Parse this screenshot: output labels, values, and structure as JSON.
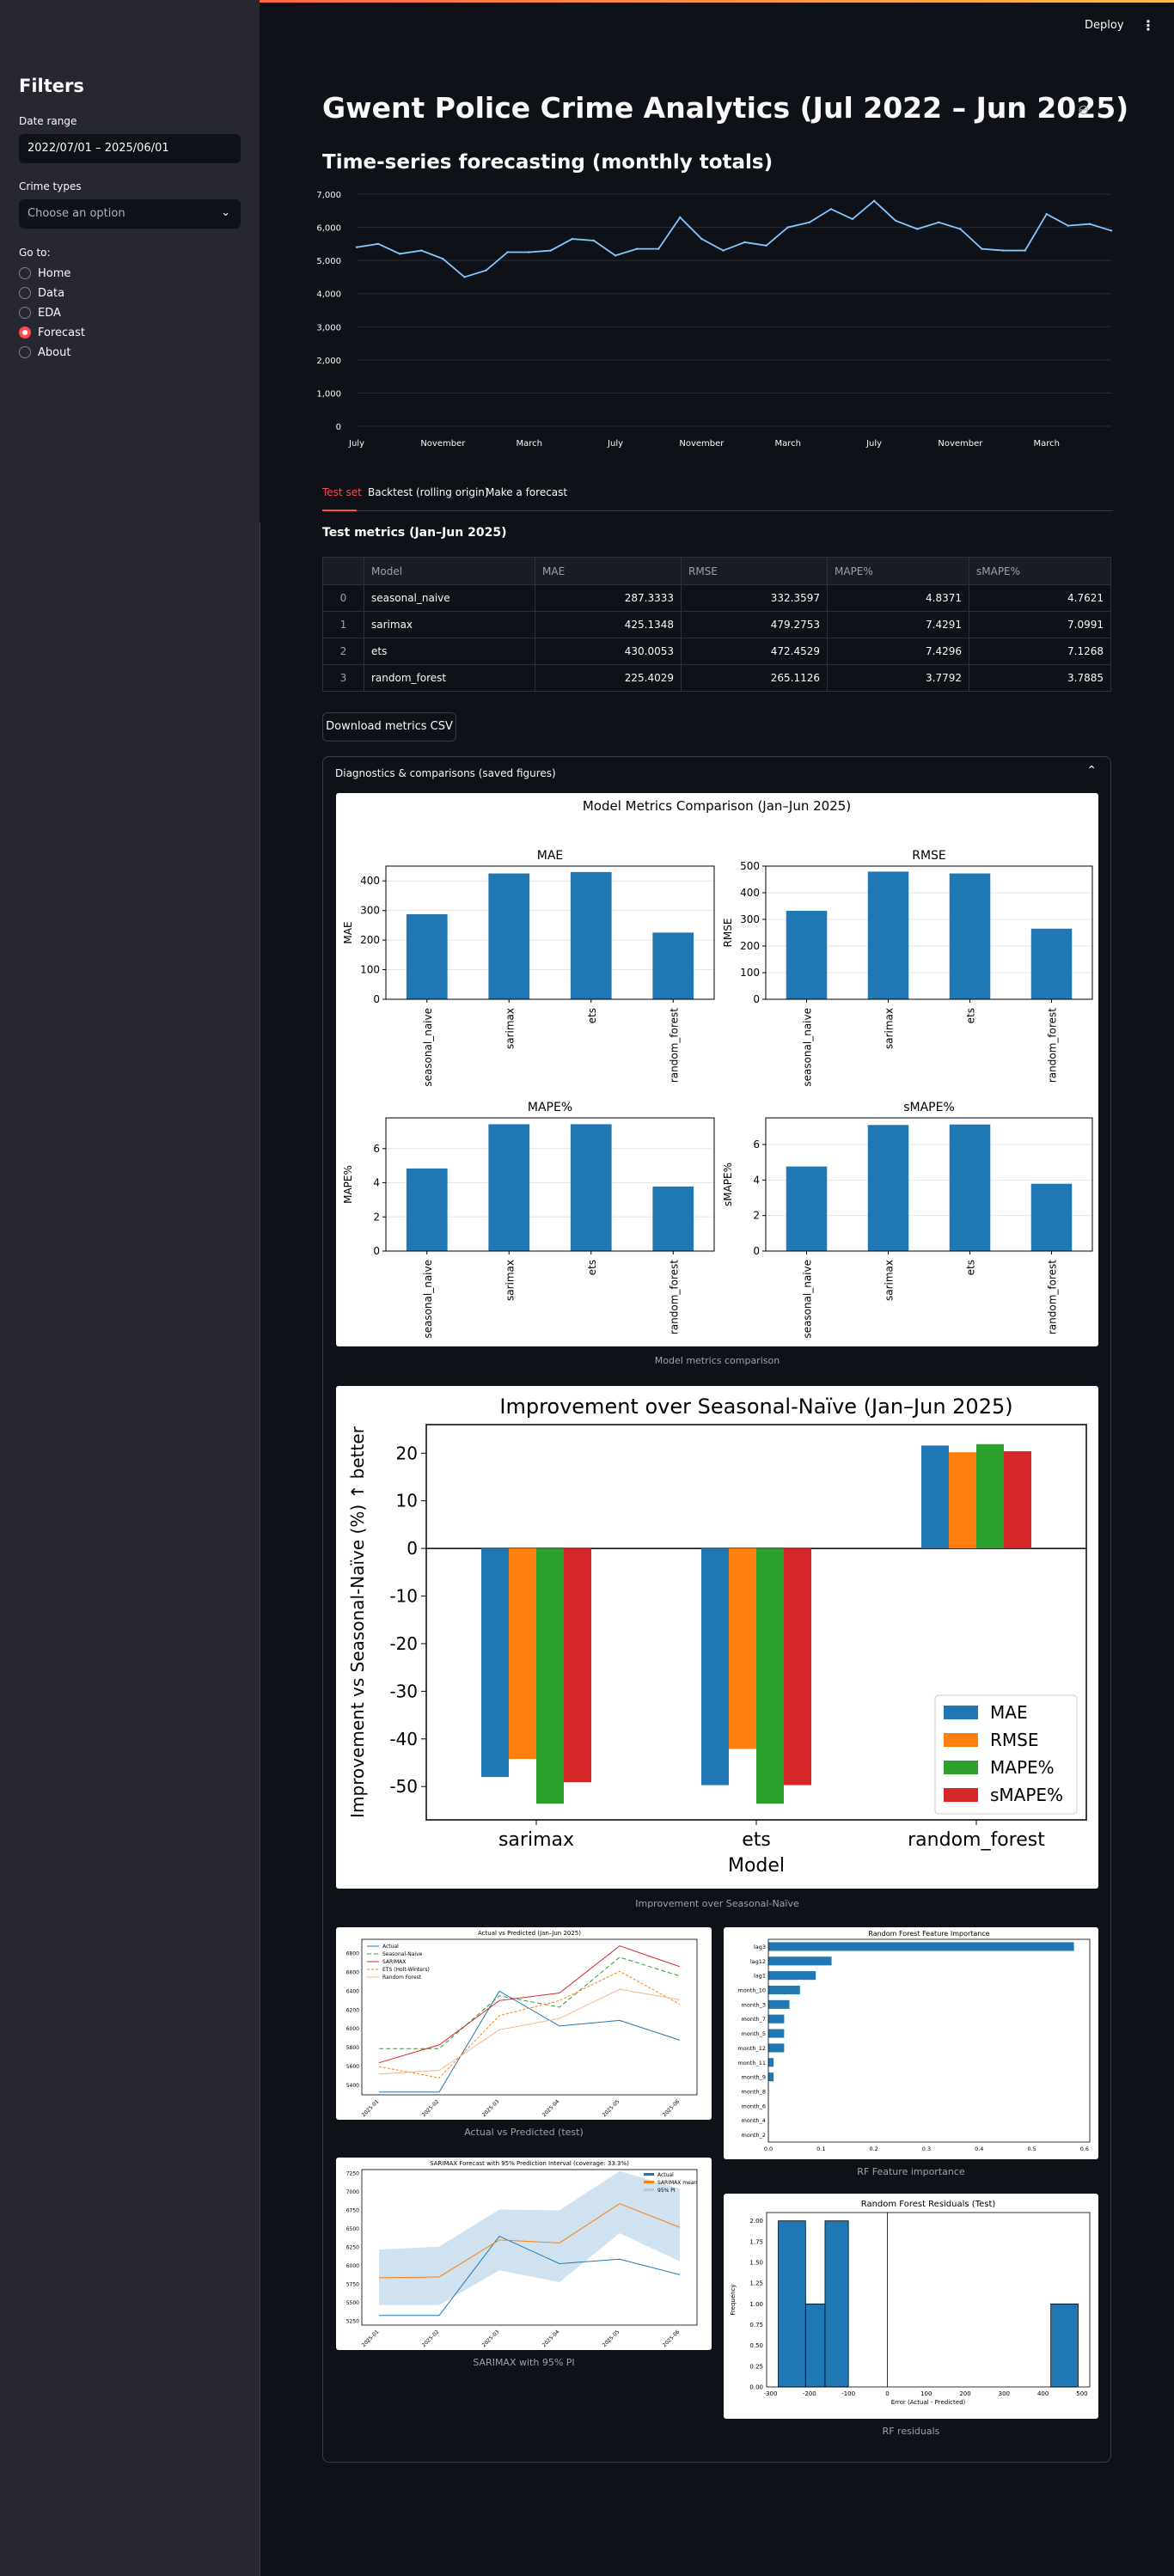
{
  "header": {
    "deploy": "Deploy",
    "menu": "⋮"
  },
  "sidebar": {
    "title": "Filters",
    "date_range_label": "Date range",
    "date_range_value": "2022/07/01 – 2025/06/01",
    "crime_types_label": "Crime types",
    "crime_types_placeholder": "Choose an option",
    "goto_label": "Go to:",
    "nav": [
      {
        "label": "Home",
        "selected": false
      },
      {
        "label": "Data",
        "selected": false
      },
      {
        "label": "EDA",
        "selected": false
      },
      {
        "label": "Forecast",
        "selected": true
      },
      {
        "label": "About",
        "selected": false
      }
    ]
  },
  "main": {
    "title": "Gwent Police Crime Analytics (Jul 2022 – Jun 2025)",
    "section": "Time-series forecasting (monthly totals)",
    "tabs": [
      "Test set",
      "Backtest (rolling origin)",
      "Make a forecast"
    ],
    "metrics_title": "Test metrics (Jan–Jun 2025)",
    "table": {
      "headers": [
        "",
        "Model",
        "MAE",
        "RMSE",
        "MAPE%",
        "sMAPE%"
      ],
      "rows": [
        [
          "0",
          "seasonal_naive",
          "287.3333",
          "332.3597",
          "4.8371",
          "4.7621"
        ],
        [
          "1",
          "sarimax",
          "425.1348",
          "479.2753",
          "7.4291",
          "7.0991"
        ],
        [
          "2",
          "ets",
          "430.0053",
          "472.4529",
          "7.4296",
          "7.1268"
        ],
        [
          "3",
          "random_forest",
          "225.4029",
          "265.1126",
          "3.7792",
          "3.7885"
        ]
      ]
    },
    "download": "Download metrics CSV",
    "expander_title": "Diagnostics & comparisons (saved figures)",
    "captions": {
      "metrics": "Model metrics comparison",
      "improvement": "Improvement over Seasonal-Naïve",
      "avp": "Actual vs Predicted (test)",
      "rf_imp": "RF Feature importance",
      "sarimax": "SARIMAX with 95% PI",
      "rf_res": "RF residuals"
    }
  },
  "chart_data": [
    {
      "type": "line",
      "x": [
        "2022-07",
        "2022-08",
        "2022-09",
        "2022-10",
        "2022-11",
        "2022-12",
        "2023-01",
        "2023-02",
        "2023-03",
        "2023-04",
        "2023-05",
        "2023-06",
        "2023-07",
        "2023-08",
        "2023-09",
        "2023-10",
        "2023-11",
        "2023-12",
        "2024-01",
        "2024-02",
        "2024-03",
        "2024-04",
        "2024-05",
        "2024-06",
        "2024-07",
        "2024-08",
        "2024-09",
        "2024-10",
        "2024-11",
        "2024-12",
        "2025-01",
        "2025-02",
        "2025-03",
        "2025-04",
        "2025-05",
        "2025-06"
      ],
      "values": [
        5400,
        5500,
        5200,
        5300,
        5050,
        4500,
        4700,
        5250,
        5250,
        5300,
        5650,
        5600,
        5150,
        5350,
        5350,
        6300,
        5650,
        5300,
        5550,
        5450,
        6000,
        6150,
        6550,
        6250,
        6800,
        6200,
        5950,
        6150,
        5950,
        5350,
        5300,
        5300,
        6400,
        6050,
        6100,
        5900
      ],
      "tick_labels": [
        "July",
        "November",
        "March",
        "July",
        "November",
        "March",
        "July",
        "November",
        "March"
      ],
      "y_ticks": [
        "0",
        "1,000",
        "2,000",
        "3,000",
        "4,000",
        "5,000",
        "6,000",
        "7,000"
      ],
      "ylim": [
        0,
        7000
      ],
      "color": "#83c9ff"
    },
    {
      "type": "bar",
      "title": "Model Metrics Comparison (Jan–Jun 2025)",
      "categories": [
        "seasonal_naive",
        "sarimax",
        "ets",
        "random_forest"
      ],
      "subplots": [
        {
          "title": "MAE",
          "ylabel": "MAE",
          "values": [
            287.3333,
            425.1348,
            430.0053,
            225.4029
          ],
          "ylim": [
            0,
            450
          ],
          "ticks": [
            0,
            100,
            200,
            300,
            400
          ]
        },
        {
          "title": "RMSE",
          "ylabel": "RMSE",
          "values": [
            332.3597,
            479.2753,
            472.4529,
            265.1126
          ],
          "ylim": [
            0,
            500
          ],
          "ticks": [
            0,
            100,
            200,
            300,
            400,
            500
          ]
        },
        {
          "title": "MAPE%",
          "ylabel": "MAPE%",
          "values": [
            4.8371,
            7.4291,
            7.4296,
            3.7792
          ],
          "ylim": [
            0,
            7.8
          ],
          "ticks": [
            0,
            2,
            4,
            6
          ]
        },
        {
          "title": "sMAPE%",
          "ylabel": "sMAPE%",
          "values": [
            4.7621,
            7.0991,
            7.1268,
            3.7885
          ],
          "ylim": [
            0,
            7.5
          ],
          "ticks": [
            0,
            2,
            4,
            6
          ]
        }
      ],
      "color": "#1f77b4"
    },
    {
      "type": "bar",
      "title": "Improvement over Seasonal-Naïve (Jan–Jun 2025)",
      "xlabel": "Model",
      "ylabel": "Improvement vs Seasonal-Naïve (%)  ↑ better",
      "categories": [
        "sarimax",
        "ets",
        "random_forest"
      ],
      "series": [
        {
          "name": "MAE",
          "color": "#1f77b4",
          "values": [
            -48.0,
            -49.7,
            21.6
          ]
        },
        {
          "name": "RMSE",
          "color": "#ff7f0e",
          "values": [
            -44.2,
            -42.1,
            20.2
          ]
        },
        {
          "name": "MAPE%",
          "color": "#2ca02c",
          "values": [
            -53.6,
            -53.6,
            21.9
          ]
        },
        {
          "name": "sMAPE%",
          "color": "#d62728",
          "values": [
            -49.1,
            -49.7,
            20.4
          ]
        }
      ],
      "ylim": [
        -57,
        26
      ],
      "ticks": [
        -50,
        -40,
        -30,
        -20,
        -10,
        0,
        10,
        20
      ],
      "legend": "lower-right"
    },
    {
      "type": "line",
      "title": "Actual vs Predicted (Jan–Jun 2025)",
      "x": [
        "2025-01",
        "2025-02",
        "2025-03",
        "2025-04",
        "2025-05",
        "2025-06"
      ],
      "ylim": [
        5300,
        6950
      ],
      "ticks": [
        5400,
        5600,
        5800,
        6000,
        6200,
        6400,
        6600,
        6800
      ],
      "series": [
        {
          "name": "Actual",
          "color": "#1f77b4",
          "dash": "",
          "values": [
            5330,
            5330,
            6400,
            6030,
            6090,
            5880
          ]
        },
        {
          "name": "Seasonal-Naive",
          "color": "#2ca02c",
          "dash": "5,3",
          "values": [
            5790,
            5790,
            6350,
            6230,
            6760,
            6560
          ]
        },
        {
          "name": "SARIMAX",
          "color": "#d62728",
          "dash": "",
          "values": [
            5640,
            5830,
            6300,
            6380,
            6880,
            6660
          ]
        },
        {
          "name": "ETS (Holt-Winters)",
          "color": "#ff7f0e",
          "dash": "3,2",
          "values": [
            5600,
            5480,
            6140,
            6300,
            6610,
            6260
          ]
        },
        {
          "name": "Random Forest",
          "color": "#f3b490",
          "dash": "",
          "values": [
            5520,
            5560,
            5990,
            6110,
            6420,
            6310
          ]
        }
      ]
    },
    {
      "type": "bar",
      "title": "Random Forest Feature Importance",
      "orientation": "horizontal",
      "categories": [
        "lag3",
        "lag12",
        "lag1",
        "month_10",
        "month_3",
        "month_7",
        "month_5",
        "month_12",
        "month_11",
        "month_9",
        "month_8",
        "month_6",
        "month_4",
        "month_2"
      ],
      "values": [
        0.58,
        0.12,
        0.09,
        0.06,
        0.04,
        0.03,
        0.03,
        0.03,
        0.01,
        0.01,
        0.0,
        0.0,
        0.0,
        0.0
      ],
      "ticks": [
        0.0,
        0.1,
        0.2,
        0.3,
        0.4,
        0.5,
        0.6
      ],
      "xlim": [
        0,
        0.61
      ]
    },
    {
      "type": "area",
      "title": "SARIMAX Forecast with 95% Prediction Interval (coverage: 33.3%)",
      "x": [
        "2025-01",
        "2025-02",
        "2025-03",
        "2025-04",
        "2025-05",
        "2025-06"
      ],
      "ylim": [
        5200,
        7300
      ],
      "ticks": [
        5250,
        5500,
        5750,
        6000,
        6250,
        6500,
        6750,
        7000,
        7250
      ],
      "series": [
        {
          "name": "Actual",
          "color": "#1f77b4",
          "values": [
            5330,
            5330,
            6400,
            6030,
            6090,
            5880
          ]
        },
        {
          "name": "SARIMAX mean",
          "color": "#ff7f0e",
          "values": [
            5840,
            5850,
            6350,
            6310,
            6840,
            6520
          ]
        },
        {
          "name": "95% PI",
          "color": "#a9cbe4",
          "lower": [
            5470,
            5470,
            5940,
            5780,
            6440,
            6060
          ],
          "upper": [
            6220,
            6260,
            6760,
            6750,
            7280,
            7040
          ]
        }
      ]
    },
    {
      "type": "bar",
      "title": "Random Forest Residuals (Test)",
      "xlabel": "Error (Actual - Predicted)",
      "ylabel": "Frequency",
      "bins": [
        [
          -280,
          -210,
          2
        ],
        [
          -210,
          -160,
          1
        ],
        [
          -160,
          -100,
          2
        ],
        [
          420,
          490,
          1
        ]
      ],
      "xlim": [
        -310,
        520
      ],
      "ylim": [
        0,
        2.1
      ],
      "xticks": [
        -300,
        -200,
        -100,
        0,
        100,
        200,
        300,
        400,
        500
      ],
      "yticks": [
        0.0,
        0.25,
        0.5,
        0.75,
        1.0,
        1.25,
        1.5,
        1.75,
        2.0
      ]
    }
  ]
}
